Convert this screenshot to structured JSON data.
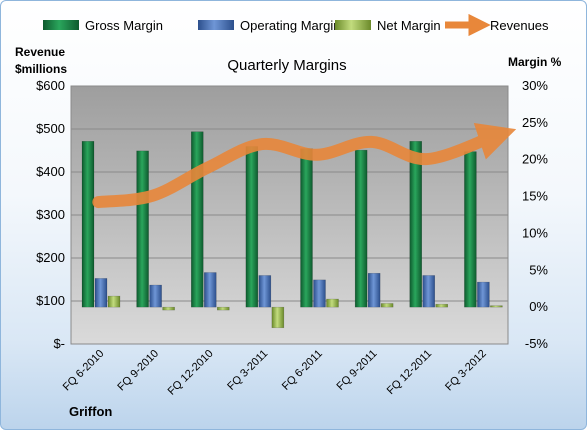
{
  "chart_data": {
    "type": "bar",
    "title": "Quarterly Margins",
    "company": "Griffon",
    "left_axis": {
      "title_lines": [
        "Revenue",
        "$millions"
      ],
      "ticks": [
        "$600",
        "$500",
        "$400",
        "$300",
        "$200",
        "$100",
        "$-"
      ],
      "range": [
        0,
        600
      ]
    },
    "right_axis": {
      "title": "Margin %",
      "ticks": [
        "30%",
        "25%",
        "20%",
        "15%",
        "10%",
        "5%",
        "0%",
        "-5%"
      ],
      "range": [
        -5,
        30
      ]
    },
    "categories": [
      "FQ 6-2010",
      "FQ 9-2010",
      "FQ 12-2010",
      "FQ 3-2011",
      "FQ 6-2011",
      "FQ 9-2011",
      "FQ 12-2011",
      "FQ 3-2012"
    ],
    "series": [
      {
        "name": "Gross Margin",
        "type": "bar",
        "axis": "right",
        "color": "#1f8a4c",
        "values": [
          22.5,
          21.2,
          23.8,
          21.8,
          21.5,
          21.3,
          22.5,
          21.1
        ]
      },
      {
        "name": "Operating Margin",
        "type": "bar",
        "axis": "right",
        "color": "#4a74b8",
        "values": [
          3.9,
          3.0,
          4.7,
          4.3,
          3.7,
          4.6,
          4.3,
          3.4
        ]
      },
      {
        "name": "Net Margin",
        "type": "bar",
        "axis": "right",
        "color": "#9bbb59",
        "values": [
          1.5,
          -0.4,
          -0.4,
          -2.8,
          1.1,
          0.5,
          0.4,
          0.2
        ]
      },
      {
        "name": "Revenues",
        "type": "line",
        "axis": "left",
        "color": "#e8873a",
        "values": [
          330,
          345,
          410,
          465,
          440,
          470,
          430,
          480
        ]
      }
    ],
    "legend": {
      "position": "top",
      "items": [
        "Gross Margin",
        "Operating Margin",
        "Net Margin",
        "Revenues"
      ]
    },
    "grid": true
  }
}
